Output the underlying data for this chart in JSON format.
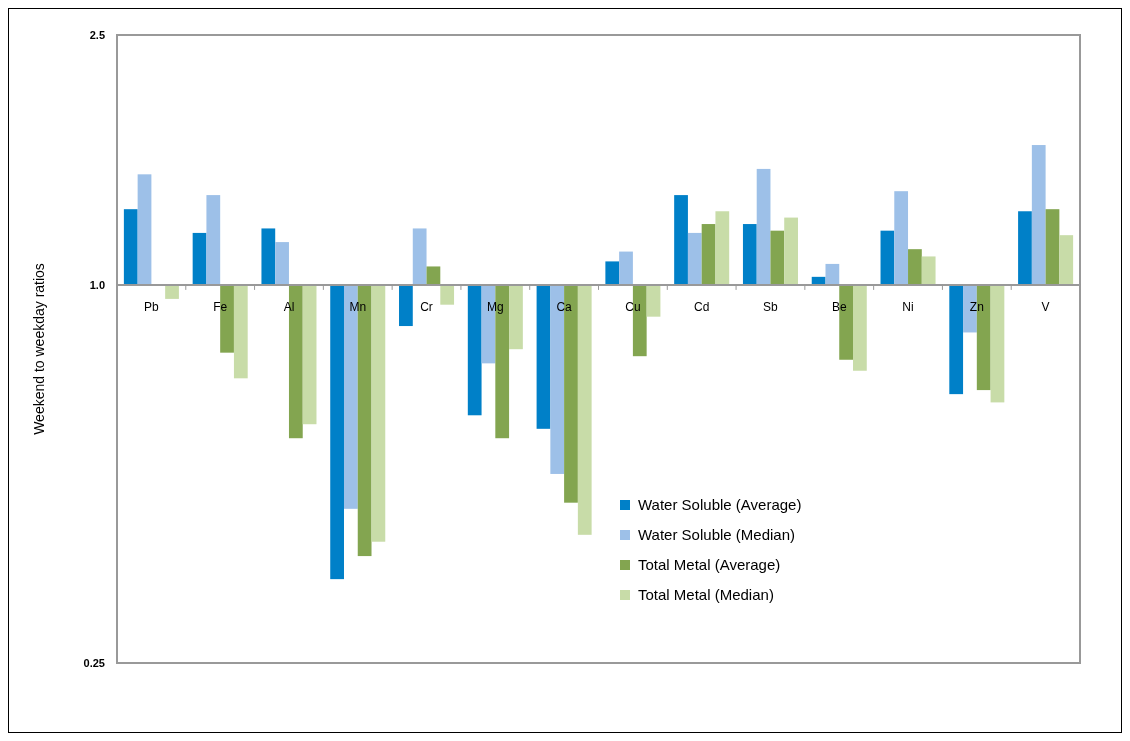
{
  "chart_data": {
    "type": "bar",
    "ylabel": "Weekend to weekday ratios",
    "log": true,
    "grid": false,
    "legend": "bottom right",
    "categories": [
      "Pb",
      "Fe",
      "Al",
      "Mn",
      "Cr",
      "Mg",
      "Ca",
      "Cu",
      "Cd",
      "Sb",
      "Be",
      "Ni",
      "Zn",
      "V"
    ],
    "ylim": [
      0.25,
      2.5
    ],
    "yticks": [
      0.25,
      {
        "value": 1,
        "label": "1.0"
      },
      2.5
    ],
    "series": [
      {
        "name": "Water Soluble (Average)",
        "color": "#0080c8",
        "base": [
          1,
          1,
          1,
          1,
          1,
          1,
          1,
          1,
          1,
          1,
          1,
          1,
          1,
          1
        ],
        "values": [
          0.32,
          0.21,
          0.23,
          -0.66,
          -0.14,
          -0.38,
          -0.41,
          0.09,
          0.39,
          0.25,
          0.03,
          0.22,
          -0.33,
          0.31
        ]
      },
      {
        "name": "Water Soluble (Median)",
        "color": "#9dc0e8",
        "base": [
          1,
          1,
          1,
          1,
          1,
          1,
          1,
          1,
          1,
          1,
          1,
          1,
          1,
          1
        ],
        "values": [
          0.5,
          0.39,
          0.17,
          -0.56,
          0.23,
          -0.25,
          -0.5,
          0.13,
          0.21,
          0.53,
          0.08,
          0.41,
          -0.16,
          0.67
        ]
      },
      {
        "name": "Total Metal (Average)",
        "color": "#83a550",
        "base": [
          null,
          1,
          1,
          1,
          1,
          1,
          1,
          1,
          1,
          1,
          1,
          1,
          1,
          1
        ],
        "values": [
          null,
          -0.22,
          -0.43,
          -0.63,
          0.07,
          -0.43,
          -0.55,
          -0.23,
          0.25,
          0.22,
          -0.24,
          0.14,
          -0.32,
          0.32
        ]
      },
      {
        "name": "Total Metal (Median)",
        "color": "#c8dca8",
        "base": [
          1,
          1,
          1,
          1,
          1,
          1,
          1,
          1,
          1,
          1,
          1,
          1,
          1,
          1
        ],
        "values": [
          -0.05,
          -0.29,
          -0.4,
          -0.61,
          -0.07,
          -0.21,
          -0.6,
          -0.11,
          0.31,
          0.28,
          -0.27,
          0.11,
          -0.35,
          0.2
        ]
      }
    ]
  }
}
